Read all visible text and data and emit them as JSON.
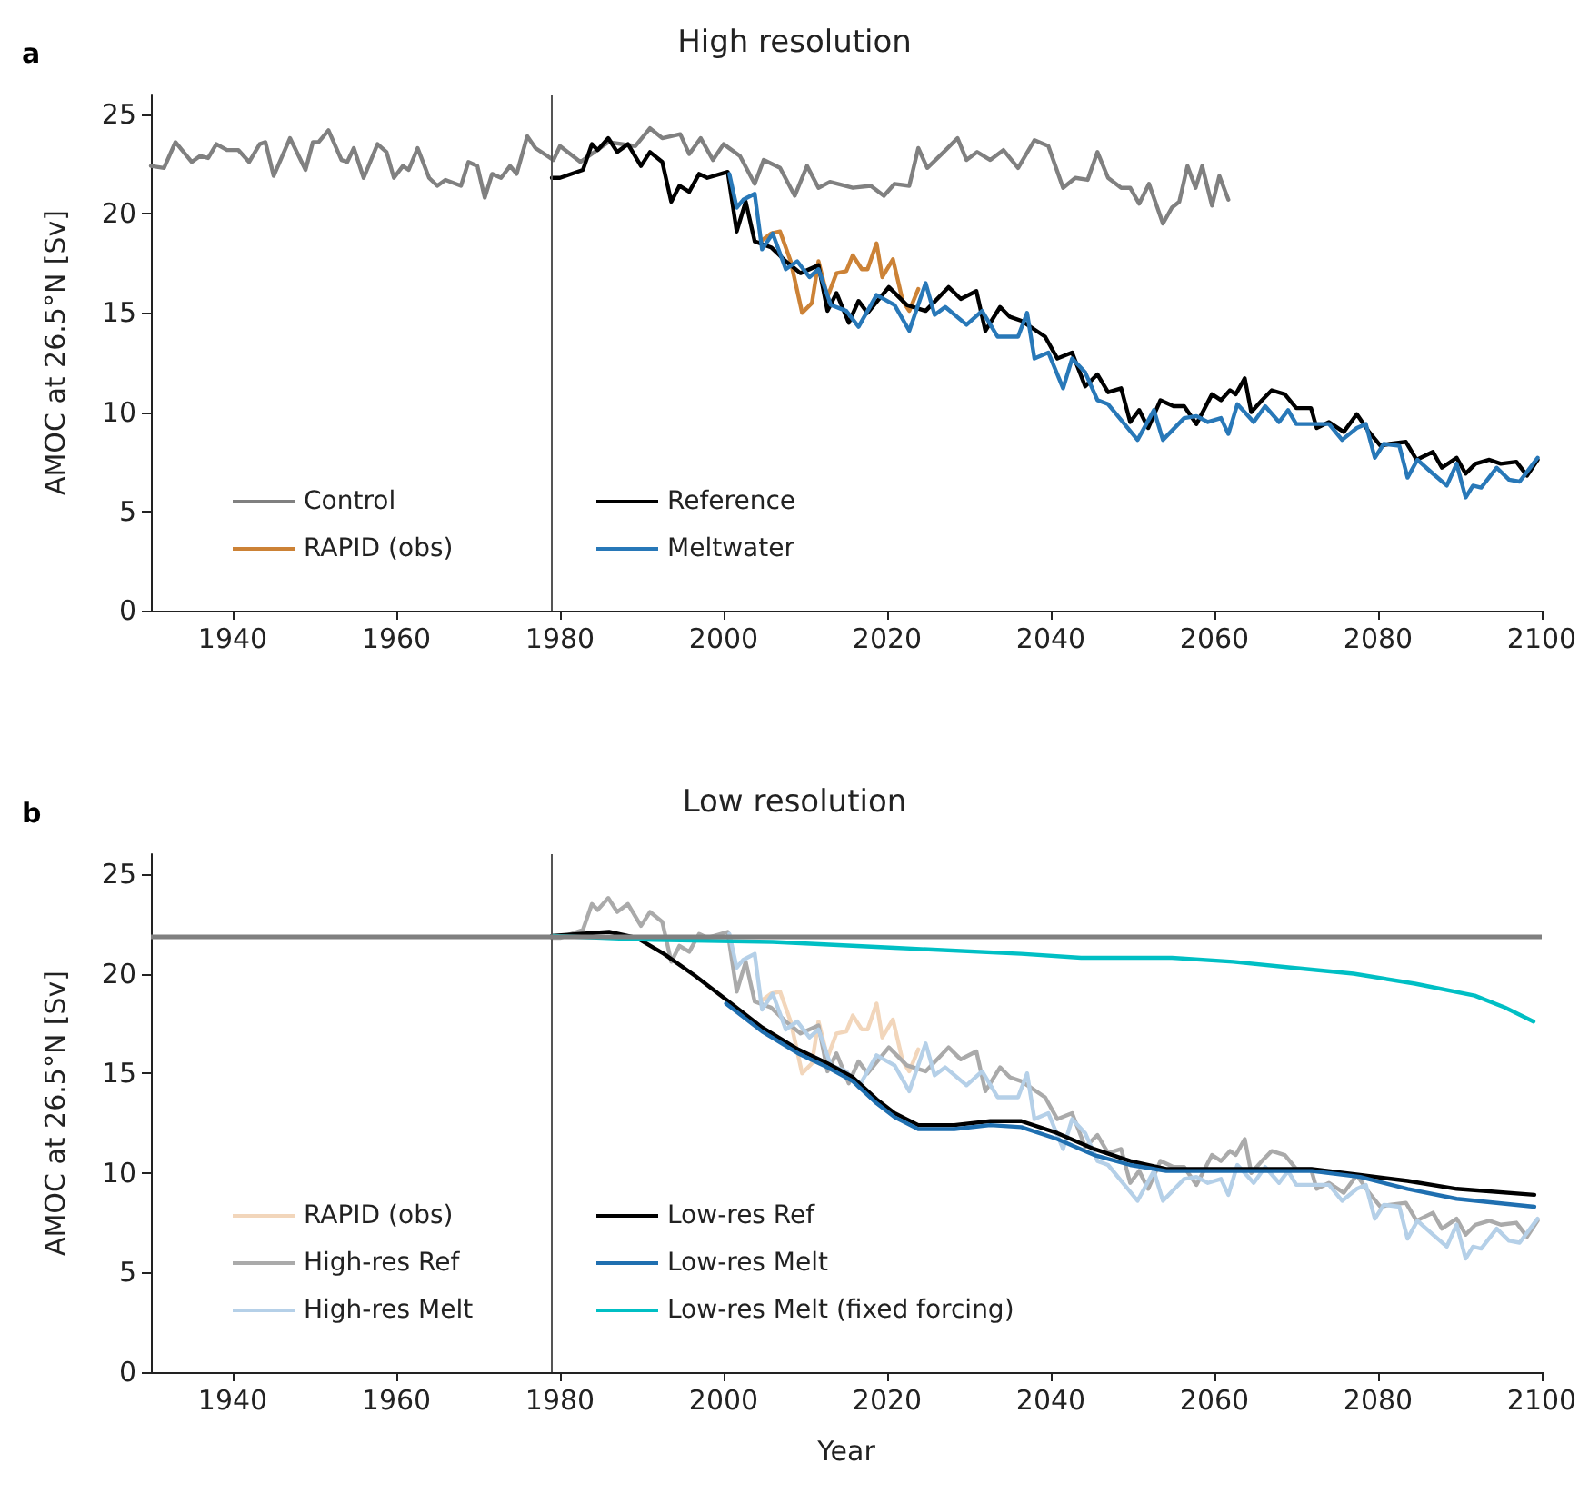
{
  "chart_data": [
    {
      "type": "line",
      "title": "High resolution",
      "ylabel": "AMOC at 26.5°N [Sv]",
      "annotations": [
        "a"
      ],
      "xlim": [
        1930,
        2100
      ],
      "xticks": [
        1940,
        1960,
        1980,
        2000,
        2020,
        2040,
        2060,
        2080,
        2100
      ],
      "ylim": [
        0,
        26
      ],
      "yticks": [
        0,
        5,
        10,
        15,
        20,
        25
      ],
      "grid": false,
      "legend": "bottom left",
      "marker": "none",
      "line_style": "solid",
      "ref_lines": [
        {
          "axis": "x",
          "value": 1979,
          "label": null,
          "color": "#555555"
        }
      ],
      "series": [
        {
          "name": "Control",
          "color": "#808080",
          "x": [
            1930,
            1931.6,
            1933,
            1935,
            1936,
            1937,
            1938,
            1939.3,
            1940.7,
            1942,
            1943.3,
            1944,
            1945,
            1947,
            1948.9,
            1949.8,
            1950.5,
            1951.7,
            1953.3,
            1954,
            1954.8,
            1956,
            1957.7,
            1958.8,
            1959.7,
            1960.8,
            1961.5,
            1962.6,
            1964,
            1965,
            1966,
            1967.9,
            1968.8,
            1969.9,
            1970.8,
            1971.7,
            1972.8,
            1973.9,
            1974.7,
            1976,
            1977,
            1979.2,
            1980,
            1982.5,
            1985.9,
            1989.2,
            1991,
            1992.5,
            1994.7,
            1995.8,
            1997.2,
            1998.7,
            2000,
            2002,
            2003.8,
            2004.9,
            2006.9,
            2008.7,
            2010.2,
            2011.6,
            2013,
            2015.8,
            2018,
            2019.6,
            2020.9,
            2022.7,
            2023.8,
            2024.9,
            2026.9,
            2028.6,
            2029.7,
            2031,
            2032.6,
            2034.2,
            2036,
            2038,
            2039.7,
            2041.5,
            2043,
            2044.5,
            2045.7,
            2047,
            2048.6,
            2049.7,
            2050.8,
            2052,
            2053.7,
            2054.8,
            2055.7,
            2056.7,
            2057.7,
            2058.5,
            2059.7,
            2060.6,
            2061.7
          ],
          "values": [
            22.4,
            22.3,
            23.6,
            22.6,
            22.9,
            22.8,
            23.5,
            23.2,
            23.2,
            22.6,
            23.5,
            23.6,
            21.9,
            23.8,
            22.2,
            23.6,
            23.6,
            24.2,
            22.7,
            22.6,
            23.3,
            21.8,
            23.5,
            23.1,
            21.8,
            22.4,
            22.2,
            23.3,
            21.8,
            21.4,
            21.7,
            21.4,
            22.6,
            22.4,
            20.8,
            22.0,
            21.8,
            22.4,
            22.0,
            23.9,
            23.3,
            22.7,
            23.4,
            22.6,
            23.6,
            23.4,
            24.3,
            23.8,
            24.0,
            23.0,
            23.8,
            22.7,
            23.5,
            22.9,
            21.5,
            22.7,
            22.3,
            20.9,
            22.4,
            21.3,
            21.6,
            21.3,
            21.4,
            20.9,
            21.5,
            21.4,
            23.3,
            22.3,
            23.1,
            23.8,
            22.7,
            23.1,
            22.7,
            23.2,
            22.3,
            23.7,
            23.4,
            21.3,
            21.8,
            21.7,
            23.1,
            21.8,
            21.3,
            21.3,
            20.5,
            21.5,
            19.5,
            20.3,
            20.6,
            22.4,
            21.3,
            22.4,
            20.4,
            21.9,
            20.7
          ]
        },
        {
          "name": "RAPID (obs)",
          "color": "#cc8236",
          "x": [
            2004.5,
            2005.8,
            2006.9,
            2008.2,
            2009.6,
            2010.8,
            2011.6,
            2012.7,
            2013.8,
            2015,
            2015.8,
            2016.9,
            2017.6,
            2018.7,
            2019.4,
            2020.7,
            2021.9,
            2022.7,
            2023.8
          ],
          "values": [
            18.6,
            19.0,
            19.1,
            17.6,
            15.0,
            15.5,
            17.6,
            15.8,
            17.0,
            17.1,
            17.9,
            17.2,
            17.2,
            18.5,
            16.8,
            17.7,
            15.6,
            15.1,
            16.2
          ]
        },
        {
          "name": "Reference",
          "color": "#000000",
          "x": [
            1979,
            1980,
            1982.8,
            1983.9,
            1984.6,
            1985.9,
            1987,
            1988.3,
            1989.9,
            1991,
            1992.5,
            1993.6,
            1994.6,
            1995.8,
            1997,
            1998,
            2000.5,
            2001.6,
            2002.7,
            2003.8,
            2005.8,
            2007.6,
            2009.4,
            2011.6,
            2012.7,
            2013.8,
            2015.3,
            2016.5,
            2017.6,
            2020.2,
            2022.4,
            2024.7,
            2027.5,
            2029,
            2030.9,
            2032,
            2033.8,
            2035,
            2036.4,
            2039.3,
            2040.8,
            2042.6,
            2044.2,
            2045.7,
            2047,
            2048.6,
            2049.7,
            2050.8,
            2051.9,
            2053.4,
            2055,
            2056.3,
            2057.8,
            2059.7,
            2060.8,
            2061.9,
            2062.6,
            2063.7,
            2064.5,
            2065.8,
            2067,
            2068.6,
            2070,
            2071.8,
            2072.5,
            2074,
            2075.8,
            2077.4,
            2078.9,
            2080.3,
            2081.4,
            2083.4,
            2084.7,
            2086.7,
            2087.8,
            2089.6,
            2090.7,
            2091.9,
            2093.6,
            2095,
            2096.9,
            2098.2,
            2099.5
          ],
          "values": [
            21.8,
            21.8,
            22.2,
            23.5,
            23.2,
            23.8,
            23.1,
            23.5,
            22.4,
            23.1,
            22.6,
            20.6,
            21.4,
            21.1,
            22.0,
            21.8,
            22.1,
            19.1,
            20.6,
            18.6,
            18.3,
            17.6,
            17.0,
            17.4,
            15.1,
            16.0,
            14.5,
            15.6,
            15.0,
            16.3,
            15.4,
            15.1,
            16.3,
            15.7,
            16.1,
            14.1,
            15.3,
            14.8,
            14.6,
            13.8,
            12.7,
            13.0,
            11.3,
            11.9,
            11.0,
            11.2,
            9.5,
            10.1,
            9.2,
            10.6,
            10.3,
            10.3,
            9.4,
            10.9,
            10.6,
            11.1,
            10.9,
            11.7,
            10.0,
            10.6,
            11.1,
            10.9,
            10.2,
            10.2,
            9.2,
            9.5,
            9.0,
            9.9,
            9.0,
            8.3,
            8.4,
            8.5,
            7.6,
            8.0,
            7.2,
            7.7,
            6.9,
            7.4,
            7.6,
            7.4,
            7.5,
            6.8,
            7.6
          ]
        },
        {
          "name": "Meltwater",
          "color": "#2878b8",
          "x": [
            2000.7,
            2001.6,
            2002.4,
            2003.8,
            2004.7,
            2006,
            2007.6,
            2009,
            2010.5,
            2011.6,
            2013.1,
            2015,
            2016.5,
            2018.7,
            2020.9,
            2022.7,
            2024.7,
            2025.8,
            2027.1,
            2029.7,
            2031.6,
            2033.5,
            2036,
            2037.1,
            2038,
            2039.7,
            2041.5,
            2042.6,
            2044.2,
            2045.7,
            2047,
            2049,
            2050.6,
            2052.6,
            2053.7,
            2056.3,
            2057.8,
            2059.2,
            2060.8,
            2061.7,
            2062.8,
            2064.8,
            2066.2,
            2067.9,
            2069,
            2070,
            2072.5,
            2074,
            2075.6,
            2077.4,
            2078.5,
            2079.6,
            2080.7,
            2082.6,
            2083.6,
            2084.8,
            2086.7,
            2088.4,
            2089.6,
            2090.7,
            2091.6,
            2092.6,
            2094.5,
            2096,
            2097.3,
            2099.5
          ],
          "values": [
            22.0,
            20.3,
            20.7,
            21.0,
            18.2,
            19.0,
            17.2,
            17.6,
            16.8,
            17.2,
            15.4,
            15.1,
            14.3,
            15.9,
            15.4,
            14.1,
            16.5,
            14.9,
            15.3,
            14.4,
            15.1,
            13.8,
            13.8,
            15.0,
            12.7,
            13.0,
            11.2,
            12.7,
            12.0,
            10.6,
            10.4,
            9.4,
            8.6,
            10.1,
            8.6,
            9.7,
            9.8,
            9.5,
            9.7,
            8.9,
            10.4,
            9.5,
            10.3,
            9.5,
            10.1,
            9.4,
            9.4,
            9.4,
            8.6,
            9.2,
            9.4,
            7.7,
            8.4,
            8.3,
            6.7,
            7.6,
            6.9,
            6.3,
            7.4,
            5.7,
            6.3,
            6.2,
            7.2,
            6.6,
            6.5,
            7.7
          ]
        }
      ]
    },
    {
      "type": "line",
      "title": "Low resolution",
      "xlabel": "Year",
      "ylabel": "AMOC at 26.5°N [Sv]",
      "annotations": [
        "b"
      ],
      "xlim": [
        1930,
        2100
      ],
      "xticks": [
        1940,
        1960,
        1980,
        2000,
        2020,
        2040,
        2060,
        2080,
        2100
      ],
      "ylim": [
        0,
        26
      ],
      "yticks": [
        0,
        5,
        10,
        15,
        20,
        25
      ],
      "grid": false,
      "legend": "bottom left",
      "marker": "none",
      "line_style": "solid",
      "ref_lines": [
        {
          "axis": "x",
          "value": 1979,
          "label": null,
          "color": "#555555"
        },
        {
          "axis": "y",
          "value": 21.9,
          "label": null,
          "color": "#808080"
        }
      ],
      "series": [
        {
          "name": "RAPID (obs)",
          "color": "#f2d6bb",
          "x": [
            2004.5,
            2005.8,
            2006.9,
            2008.2,
            2009.6,
            2010.8,
            2011.6,
            2012.7,
            2013.8,
            2015,
            2015.8,
            2016.9,
            2017.6,
            2018.7,
            2019.4,
            2020.7,
            2021.9,
            2022.7,
            2023.8
          ],
          "values": [
            18.6,
            19.0,
            19.1,
            17.6,
            15.0,
            15.5,
            17.6,
            15.8,
            17.0,
            17.1,
            17.9,
            17.2,
            17.2,
            18.5,
            16.8,
            17.7,
            15.6,
            15.1,
            16.2
          ]
        },
        {
          "name": "High-res Ref",
          "color": "#aaaaaa",
          "x": [
            1979,
            1980,
            1982.8,
            1983.9,
            1984.6,
            1985.9,
            1987,
            1988.3,
            1989.9,
            1991,
            1992.5,
            1993.6,
            1994.6,
            1995.8,
            1997,
            1998,
            2000.5,
            2001.6,
            2002.7,
            2003.8,
            2005.8,
            2007.6,
            2009.4,
            2011.6,
            2012.7,
            2013.8,
            2015.3,
            2016.5,
            2017.6,
            2020.2,
            2022.4,
            2024.7,
            2027.5,
            2029,
            2030.9,
            2032,
            2033.8,
            2035,
            2036.4,
            2039.3,
            2040.8,
            2042.6,
            2044.2,
            2045.7,
            2047,
            2048.6,
            2049.7,
            2050.8,
            2051.9,
            2053.4,
            2055,
            2056.3,
            2057.8,
            2059.7,
            2060.8,
            2061.9,
            2062.6,
            2063.7,
            2064.5,
            2065.8,
            2067,
            2068.6,
            2070,
            2071.8,
            2072.5,
            2074,
            2075.8,
            2077.4,
            2078.9,
            2080.3,
            2081.4,
            2083.4,
            2084.7,
            2086.7,
            2087.8,
            2089.6,
            2090.7,
            2091.9,
            2093.6,
            2095,
            2096.9,
            2098.2,
            2099.5
          ],
          "values": [
            21.8,
            21.8,
            22.2,
            23.5,
            23.2,
            23.8,
            23.1,
            23.5,
            22.4,
            23.1,
            22.6,
            20.6,
            21.4,
            21.1,
            22.0,
            21.8,
            22.1,
            19.1,
            20.6,
            18.6,
            18.3,
            17.6,
            17.0,
            17.4,
            15.1,
            16.0,
            14.5,
            15.6,
            15.0,
            16.3,
            15.4,
            15.1,
            16.3,
            15.7,
            16.1,
            14.1,
            15.3,
            14.8,
            14.6,
            13.8,
            12.7,
            13.0,
            11.3,
            11.9,
            11.0,
            11.2,
            9.5,
            10.1,
            9.2,
            10.6,
            10.3,
            10.3,
            9.4,
            10.9,
            10.6,
            11.1,
            10.9,
            11.7,
            10.0,
            10.6,
            11.1,
            10.9,
            10.2,
            10.2,
            9.2,
            9.5,
            9.0,
            9.9,
            9.0,
            8.3,
            8.4,
            8.5,
            7.6,
            8.0,
            7.2,
            7.7,
            6.9,
            7.4,
            7.6,
            7.4,
            7.5,
            6.8,
            7.6
          ]
        },
        {
          "name": "High-res Melt",
          "color": "#b5d0e8",
          "x": [
            2000.7,
            2001.6,
            2002.4,
            2003.8,
            2004.7,
            2006,
            2007.6,
            2009,
            2010.5,
            2011.6,
            2013.1,
            2015,
            2016.5,
            2018.7,
            2020.9,
            2022.7,
            2024.7,
            2025.8,
            2027.1,
            2029.7,
            2031.6,
            2033.5,
            2036,
            2037.1,
            2038,
            2039.7,
            2041.5,
            2042.6,
            2044.2,
            2045.7,
            2047,
            2049,
            2050.6,
            2052.6,
            2053.7,
            2056.3,
            2057.8,
            2059.2,
            2060.8,
            2061.7,
            2062.8,
            2064.8,
            2066.2,
            2067.9,
            2069,
            2070,
            2072.5,
            2074,
            2075.6,
            2077.4,
            2078.5,
            2079.6,
            2080.7,
            2082.6,
            2083.6,
            2084.8,
            2086.7,
            2088.4,
            2089.6,
            2090.7,
            2091.6,
            2092.6,
            2094.5,
            2096,
            2097.3,
            2099.5
          ],
          "values": [
            22.0,
            20.3,
            20.7,
            21.0,
            18.2,
            19.0,
            17.2,
            17.6,
            16.8,
            17.2,
            15.4,
            15.1,
            14.3,
            15.9,
            15.4,
            14.1,
            16.5,
            14.9,
            15.3,
            14.4,
            15.1,
            13.8,
            13.8,
            15.0,
            12.7,
            13.0,
            11.2,
            12.7,
            12.0,
            10.6,
            10.4,
            9.4,
            8.6,
            10.1,
            8.6,
            9.7,
            9.8,
            9.5,
            9.7,
            8.9,
            10.4,
            9.5,
            10.3,
            9.5,
            10.1,
            9.4,
            9.4,
            9.4,
            8.6,
            9.2,
            9.4,
            7.7,
            8.4,
            8.3,
            6.7,
            7.6,
            6.9,
            6.3,
            7.4,
            5.7,
            6.3,
            6.2,
            7.2,
            6.6,
            6.5,
            7.7
          ]
        },
        {
          "name": "Low-res Ref",
          "color": "#000000",
          "x": [
            1979,
            1986,
            1989.4,
            1992.7,
            1996.5,
            2000.3,
            2004.7,
            2009.1,
            2012.7,
            2015.8,
            2018.7,
            2020.9,
            2023.8,
            2028.2,
            2032.6,
            2036.4,
            2040.8,
            2045.3,
            2049.7,
            2054.1,
            2058.6,
            2065.9,
            2071.9,
            2077.8,
            2083.6,
            2089.6,
            2099.1
          ],
          "values": [
            21.9,
            22.1,
            21.8,
            21.0,
            19.9,
            18.7,
            17.3,
            16.2,
            15.5,
            14.8,
            13.7,
            13.0,
            12.4,
            12.4,
            12.6,
            12.6,
            12.0,
            11.2,
            10.6,
            10.2,
            10.2,
            10.2,
            10.2,
            9.9,
            9.6,
            9.2,
            8.9
          ]
        },
        {
          "name": "Low-res Melt",
          "color": "#1f6fb0",
          "x": [
            2000.3,
            2004.7,
            2009.1,
            2012.7,
            2015.8,
            2018.7,
            2020.9,
            2023.8,
            2028.2,
            2032.6,
            2036.4,
            2040.8,
            2045.3,
            2049.7,
            2054.1,
            2058.6,
            2065.9,
            2071.9,
            2077.8,
            2083.6,
            2089.6,
            2099.1
          ],
          "values": [
            18.5,
            17.1,
            16.0,
            15.3,
            14.6,
            13.5,
            12.8,
            12.2,
            12.2,
            12.4,
            12.3,
            11.7,
            10.9,
            10.4,
            10.1,
            10.1,
            10.1,
            10.1,
            9.8,
            9.2,
            8.7,
            8.3
          ]
        },
        {
          "name": "Low-res Melt (fixed forcing)",
          "color": "#00bfc4",
          "x": [
            1979,
            1991.4,
            2006,
            2020.9,
            2036.4,
            2043.7,
            2054.8,
            2062.3,
            2069.6,
            2077,
            2084.5,
            2091.8,
            2095.5,
            2099
          ],
          "values": [
            21.9,
            21.7,
            21.6,
            21.3,
            21.0,
            20.8,
            20.8,
            20.6,
            20.3,
            20.0,
            19.5,
            18.9,
            18.3,
            17.6
          ]
        }
      ]
    }
  ]
}
